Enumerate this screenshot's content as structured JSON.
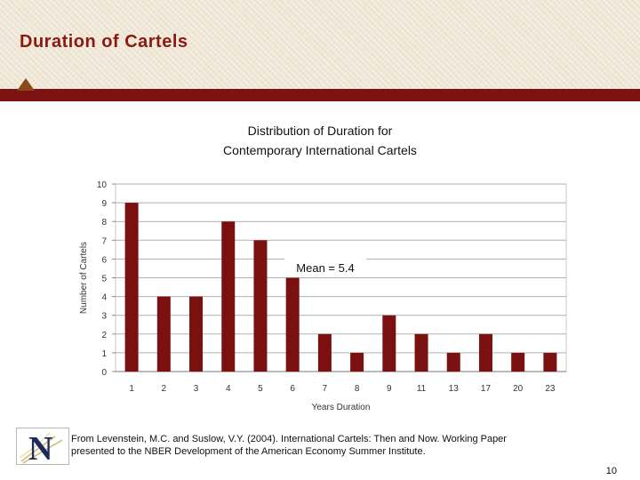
{
  "slide": {
    "title": "Duration of Cartels",
    "page_number": "10"
  },
  "source_note": {
    "line1": "From Levenstein, M.C. and Suslow, V.Y. (2004).  International Cartels: Then and Now.  Working Paper",
    "line2": "presented to the NBER Development of the American Economy Summer Institute."
  },
  "logo": {
    "letter": "N"
  },
  "colors": {
    "accent": "#8b1a13",
    "bar": "#7b1010",
    "header_band": "#efe6d5"
  },
  "chart_data": {
    "type": "bar",
    "title_lines": [
      "Distribution of Duration for",
      "Contemporary International Cartels"
    ],
    "xlabel": "Years Duration",
    "ylabel": "Number of Cartels",
    "categories": [
      "1",
      "2",
      "3",
      "4",
      "5",
      "6",
      "7",
      "8",
      "9",
      "11",
      "13",
      "17",
      "20",
      "23"
    ],
    "values": [
      9,
      4,
      4,
      8,
      7,
      5,
      2,
      1,
      3,
      2,
      1,
      2,
      1,
      1
    ],
    "ylim": [
      0,
      10
    ],
    "yticks": [
      0,
      1,
      2,
      3,
      4,
      5,
      6,
      7,
      8,
      9,
      10
    ],
    "grid": "horizontal",
    "annotation": "Mean = 5.4"
  }
}
